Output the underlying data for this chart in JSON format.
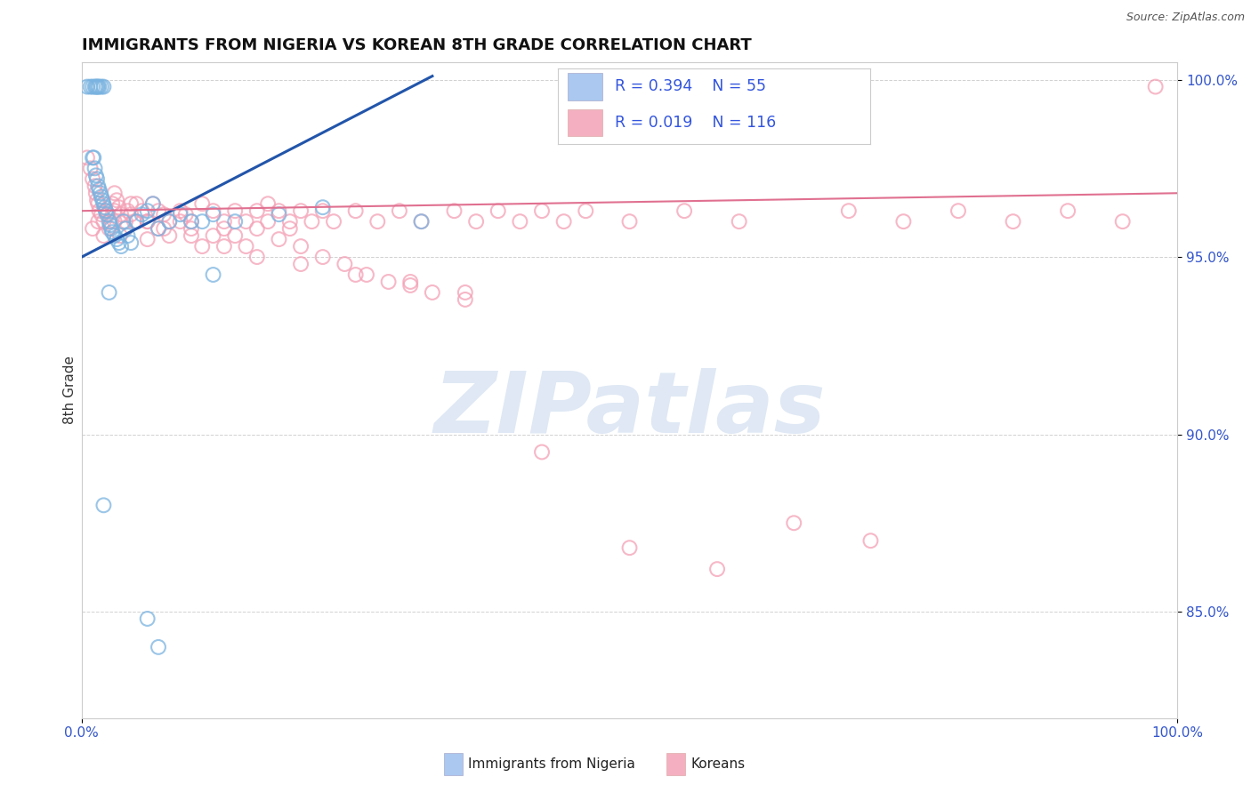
{
  "title": "IMMIGRANTS FROM NIGERIA VS KOREAN 8TH GRADE CORRELATION CHART",
  "source": "Source: ZipAtlas.com",
  "ylabel": "8th Grade",
  "xlim": [
    0.0,
    1.0
  ],
  "ylim": [
    0.82,
    1.005
  ],
  "ytick_values": [
    0.85,
    0.9,
    0.95,
    1.0
  ],
  "xtick_values": [
    0.0,
    1.0
  ],
  "xtick_labels": [
    "0.0%",
    "100.0%"
  ],
  "watermark_text": "ZIPatlas",
  "nigeria_color": "#7ab3e0",
  "korean_color": "#f4a0b5",
  "nigeria_line_color": "#2255aa",
  "korean_line_color": "#e07090",
  "legend_nigeria_color": "#aac8f0",
  "legend_korean_color": "#f4b0c0",
  "legend_value_color": "#3355dd",
  "legend_R_nigeria": "R = 0.394",
  "legend_N_nigeria": "N = 55",
  "legend_R_korean": "R = 0.019",
  "legend_N_korean": "N = 116",
  "label_nigeria": "Immigrants from Nigeria",
  "label_korean": "Koreans",
  "nigeria_line_x": [
    0.0,
    0.32
  ],
  "nigeria_line_y": [
    0.95,
    1.001
  ],
  "korean_line_x": [
    0.0,
    1.0
  ],
  "korean_line_y": [
    0.963,
    0.968
  ],
  "nigeria_x": [
    0.005,
    0.008,
    0.01,
    0.012,
    0.013,
    0.014,
    0.015,
    0.016,
    0.018,
    0.02,
    0.01,
    0.011,
    0.012,
    0.013,
    0.014,
    0.015,
    0.016,
    0.017,
    0.018,
    0.019,
    0.02,
    0.021,
    0.022,
    0.023,
    0.025,
    0.026,
    0.027,
    0.028,
    0.03,
    0.032,
    0.034,
    0.036,
    0.038,
    0.04,
    0.042,
    0.045,
    0.05,
    0.055,
    0.06,
    0.065,
    0.07,
    0.08,
    0.09,
    0.1,
    0.11,
    0.12,
    0.14,
    0.18,
    0.22,
    0.31,
    0.02,
    0.025,
    0.06,
    0.12,
    0.07
  ],
  "nigeria_y": [
    0.998,
    0.998,
    0.998,
    0.998,
    0.998,
    0.998,
    0.998,
    0.998,
    0.998,
    0.998,
    0.978,
    0.978,
    0.975,
    0.973,
    0.972,
    0.97,
    0.969,
    0.968,
    0.967,
    0.966,
    0.965,
    0.964,
    0.963,
    0.962,
    0.96,
    0.959,
    0.958,
    0.957,
    0.956,
    0.955,
    0.954,
    0.953,
    0.96,
    0.958,
    0.956,
    0.954,
    0.96,
    0.962,
    0.963,
    0.965,
    0.958,
    0.96,
    0.962,
    0.96,
    0.96,
    0.962,
    0.96,
    0.962,
    0.964,
    0.96,
    0.88,
    0.94,
    0.848,
    0.945,
    0.84
  ],
  "korean_x": [
    0.005,
    0.008,
    0.01,
    0.012,
    0.013,
    0.014,
    0.015,
    0.016,
    0.018,
    0.02,
    0.022,
    0.024,
    0.026,
    0.028,
    0.03,
    0.032,
    0.034,
    0.036,
    0.04,
    0.042,
    0.045,
    0.048,
    0.05,
    0.055,
    0.06,
    0.065,
    0.07,
    0.075,
    0.08,
    0.09,
    0.095,
    0.1,
    0.11,
    0.12,
    0.13,
    0.14,
    0.15,
    0.16,
    0.17,
    0.18,
    0.19,
    0.2,
    0.21,
    0.22,
    0.23,
    0.25,
    0.27,
    0.29,
    0.31,
    0.34,
    0.36,
    0.38,
    0.4,
    0.42,
    0.44,
    0.46,
    0.5,
    0.55,
    0.6,
    0.7,
    0.75,
    0.8,
    0.85,
    0.9,
    0.95,
    0.98,
    0.01,
    0.015,
    0.02,
    0.025,
    0.03,
    0.035,
    0.04,
    0.05,
    0.06,
    0.07,
    0.08,
    0.09,
    0.1,
    0.11,
    0.12,
    0.13,
    0.14,
    0.15,
    0.16,
    0.17,
    0.18,
    0.19,
    0.2,
    0.22,
    0.24,
    0.26,
    0.28,
    0.3,
    0.32,
    0.35,
    0.03,
    0.045,
    0.06,
    0.075,
    0.1,
    0.13,
    0.16,
    0.2,
    0.25,
    0.3,
    0.35,
    0.42,
    0.5,
    0.58,
    0.65,
    0.72
  ],
  "korean_y": [
    0.978,
    0.975,
    0.972,
    0.97,
    0.968,
    0.966,
    0.965,
    0.963,
    0.962,
    0.96,
    0.963,
    0.962,
    0.96,
    0.965,
    0.968,
    0.966,
    0.964,
    0.962,
    0.96,
    0.963,
    0.962,
    0.96,
    0.965,
    0.963,
    0.96,
    0.965,
    0.963,
    0.962,
    0.96,
    0.963,
    0.962,
    0.96,
    0.965,
    0.963,
    0.96,
    0.963,
    0.96,
    0.963,
    0.965,
    0.963,
    0.96,
    0.963,
    0.96,
    0.963,
    0.96,
    0.963,
    0.96,
    0.963,
    0.96,
    0.963,
    0.96,
    0.963,
    0.96,
    0.963,
    0.96,
    0.963,
    0.96,
    0.963,
    0.96,
    0.963,
    0.96,
    0.963,
    0.96,
    0.963,
    0.96,
    0.998,
    0.958,
    0.96,
    0.956,
    0.958,
    0.96,
    0.956,
    0.958,
    0.96,
    0.955,
    0.958,
    0.956,
    0.96,
    0.958,
    0.953,
    0.956,
    0.958,
    0.956,
    0.953,
    0.958,
    0.96,
    0.955,
    0.958,
    0.953,
    0.95,
    0.948,
    0.945,
    0.943,
    0.942,
    0.94,
    0.938,
    0.963,
    0.965,
    0.96,
    0.958,
    0.956,
    0.953,
    0.95,
    0.948,
    0.945,
    0.943,
    0.94,
    0.895,
    0.868,
    0.862,
    0.875,
    0.87
  ]
}
